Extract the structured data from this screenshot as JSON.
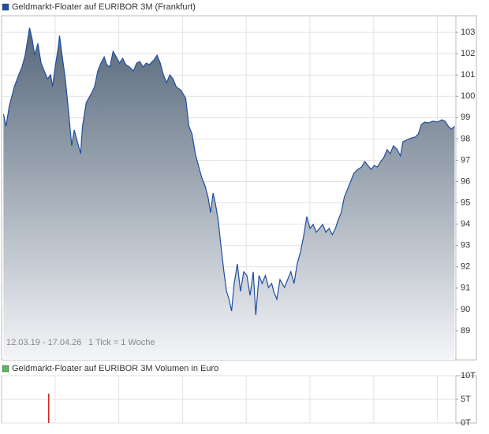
{
  "chart_data": [
    {
      "type": "area",
      "footnote_range": "12.03.19 - 17.04.26",
      "footnote_tick": "1 Tick = 1 Woche",
      "x": [
        2019.19,
        2019.23,
        2019.28,
        2019.36,
        2019.43,
        2019.48,
        2019.53,
        2019.58,
        2019.6,
        2019.64,
        2019.68,
        2019.73,
        2019.78,
        2019.83,
        2019.88,
        2019.93,
        2019.96,
        2020.0,
        2020.05,
        2020.07,
        2020.11,
        2020.16,
        2020.21,
        2020.26,
        2020.3,
        2020.35,
        2020.4,
        2020.43,
        2020.49,
        2020.56,
        2020.62,
        2020.67,
        2020.72,
        2020.77,
        2020.81,
        2020.86,
        2020.91,
        2020.96,
        2021.01,
        2021.06,
        2021.11,
        2021.17,
        2021.23,
        2021.28,
        2021.33,
        2021.38,
        2021.43,
        2021.48,
        2021.56,
        2021.6,
        2021.65,
        2021.7,
        2021.75,
        2021.8,
        2021.85,
        2021.9,
        2021.98,
        2022.05,
        2022.1,
        2022.15,
        2022.2,
        2022.25,
        2022.3,
        2022.35,
        2022.4,
        2022.44,
        2022.48,
        2022.52,
        2022.56,
        2022.6,
        2022.65,
        2022.69,
        2022.73,
        2022.77,
        2022.81,
        2022.86,
        2022.91,
        2022.96,
        2023.01,
        2023.06,
        2023.11,
        2023.15,
        2023.2,
        2023.25,
        2023.3,
        2023.35,
        2023.4,
        2023.43,
        2023.48,
        2023.53,
        2023.6,
        2023.65,
        2023.7,
        2023.75,
        2023.8,
        2023.85,
        2023.9,
        2023.95,
        2024.0,
        2024.05,
        2024.1,
        2024.15,
        2024.2,
        2024.25,
        2024.3,
        2024.35,
        2024.4,
        2024.44,
        2024.49,
        2024.54,
        2024.59,
        2024.64,
        2024.69,
        2024.75,
        2024.81,
        2024.86,
        2024.91,
        2024.96,
        2025.01,
        2025.06,
        2025.11,
        2025.16,
        2025.21,
        2025.26,
        2025.31,
        2025.37,
        2025.42,
        2025.46,
        2025.51,
        2025.56,
        2025.6,
        2025.65,
        2025.7,
        2025.75,
        2025.8,
        2025.86,
        2025.93,
        2026.0,
        2026.07,
        2026.12,
        2026.17,
        2026.22,
        2026.27
      ],
      "series": [
        {
          "name": "Geldmarkt-Floater auf EURIBOR 3M (Frankfurt)",
          "color": "#1f4fa0",
          "fill_colors": [
            "#56677a",
            "#f4f5f8"
          ],
          "values": [
            99.16,
            98.6,
            99.53,
            100.45,
            101.01,
            101.37,
            101.93,
            102.85,
            103.22,
            102.67,
            101.93,
            102.48,
            101.56,
            101.19,
            100.82,
            101.01,
            100.45,
            101.37,
            102.3,
            102.85,
            101.93,
            100.82,
            99.34,
            97.68,
            98.42,
            97.87,
            97.31,
            98.6,
            99.71,
            100.08,
            100.45,
            101.19,
            101.56,
            101.85,
            101.49,
            101.37,
            102.11,
            101.85,
            101.56,
            101.78,
            101.49,
            101.37,
            101.19,
            101.56,
            101.63,
            101.37,
            101.56,
            101.49,
            101.74,
            101.93,
            101.56,
            101.01,
            100.64,
            101.01,
            100.82,
            100.45,
            100.27,
            99.9,
            98.6,
            98.23,
            97.31,
            96.76,
            96.2,
            95.83,
            95.28,
            94.54,
            95.46,
            94.91,
            94.17,
            93.06,
            91.77,
            90.85,
            90.48,
            89.92,
            91.22,
            92.14,
            90.85,
            91.77,
            91.59,
            90.66,
            91.77,
            89.74,
            91.59,
            91.22,
            91.59,
            91.03,
            91.22,
            90.85,
            90.48,
            91.4,
            91.03,
            91.4,
            91.77,
            91.22,
            92.14,
            92.69,
            93.43,
            94.36,
            93.8,
            93.99,
            93.62,
            93.8,
            93.99,
            93.62,
            93.8,
            93.51,
            93.8,
            94.17,
            94.54,
            95.28,
            95.65,
            96.02,
            96.39,
            96.57,
            96.68,
            96.94,
            96.76,
            96.57,
            96.76,
            96.68,
            96.94,
            97.13,
            97.5,
            97.31,
            97.68,
            97.5,
            97.2,
            97.87,
            97.94,
            98.01,
            98.05,
            98.09,
            98.23,
            98.68,
            98.79,
            98.75,
            98.83,
            98.79,
            98.9,
            98.83,
            98.6,
            98.46,
            98.6
          ]
        }
      ],
      "xlim": [
        2019.16,
        2026.29
      ],
      "xticks": [
        2020,
        2021,
        2022,
        2023,
        2024,
        2025,
        2026
      ],
      "ylim": [
        87.63,
        103.78
      ],
      "yticks": [
        89,
        90,
        91,
        92,
        93,
        94,
        95,
        96,
        97,
        98,
        99,
        100,
        101,
        102,
        103
      ],
      "grid": true
    },
    {
      "type": "bar",
      "x": [
        2019.9
      ],
      "series": [
        {
          "name": "Geldmarkt-Floater auf EURIBOR 3M Volumen in Euro",
          "color": "#5cb85c",
          "bar_color": "#cc2222",
          "values": [
            6200
          ]
        }
      ],
      "xlim": [
        2019.16,
        2026.29
      ],
      "xticks": [
        2020,
        2021,
        2022,
        2023,
        2024,
        2025,
        2026
      ],
      "ylim": [
        0,
        10000
      ],
      "yticks": [
        {
          "value": 0,
          "label": "0T"
        },
        {
          "value": 5000,
          "label": "5T"
        },
        {
          "value": 10000,
          "label": "10T"
        }
      ],
      "grid": true
    }
  ]
}
